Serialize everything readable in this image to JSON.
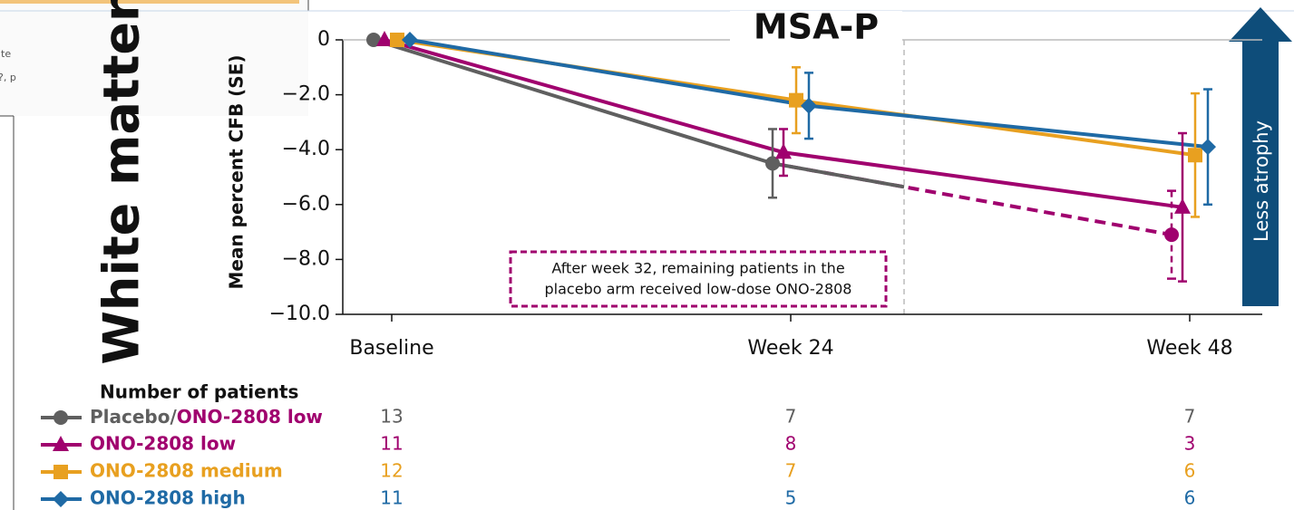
{
  "background_fragments": [
    "ite",
    "?, p"
  ],
  "chart_data": {
    "type": "line",
    "title": "MSA-P",
    "side_title": "White matter",
    "y_label": "Mean percent CFB (SE)",
    "arrow_label": "Less atrophy",
    "annotation": [
      "After week 32, remaining patients in the",
      "placebo arm received low-dose ONO-2808"
    ],
    "categories": [
      "Baseline",
      "Week 24",
      "Week 48"
    ],
    "ylim": [
      -10,
      0
    ],
    "yticks": [
      0,
      {
        "value": -2,
        "label": "−2.0"
      },
      {
        "value": -4,
        "label": "−4.0"
      },
      {
        "value": -6,
        "label": "−6.0"
      },
      {
        "value": -8,
        "label": "−8.0"
      },
      {
        "value": -10,
        "label": "−10.0"
      }
    ],
    "table_title": "Number of patients",
    "series": [
      {
        "name": "Placebo/ONO-2808 low",
        "color": "#5f5f5f",
        "post_switch_color": "#a0006e",
        "marker": "circle",
        "values": [
          0,
          -4.5,
          -7.1
        ],
        "errors": [
          null,
          1.25,
          1.6
        ],
        "patients": [
          13,
          7,
          7
        ]
      },
      {
        "name": "ONO-2808 low",
        "color": "#a0006e",
        "marker": "triangle",
        "values": [
          0,
          -4.1,
          -6.1
        ],
        "errors": [
          null,
          0.85,
          2.7
        ],
        "patients": [
          11,
          8,
          3
        ]
      },
      {
        "name": "ONO-2808 medium",
        "color": "#e8a020",
        "marker": "square",
        "values": [
          0,
          -2.2,
          -4.2
        ],
        "errors": [
          null,
          1.2,
          2.25
        ],
        "patients": [
          12,
          7,
          6
        ]
      },
      {
        "name": "ONO-2808 high",
        "color": "#1f6aa5",
        "marker": "diamond",
        "values": [
          0,
          -2.4,
          -3.9
        ],
        "errors": [
          null,
          1.2,
          2.1
        ],
        "patients": [
          11,
          5,
          6
        ]
      }
    ]
  }
}
